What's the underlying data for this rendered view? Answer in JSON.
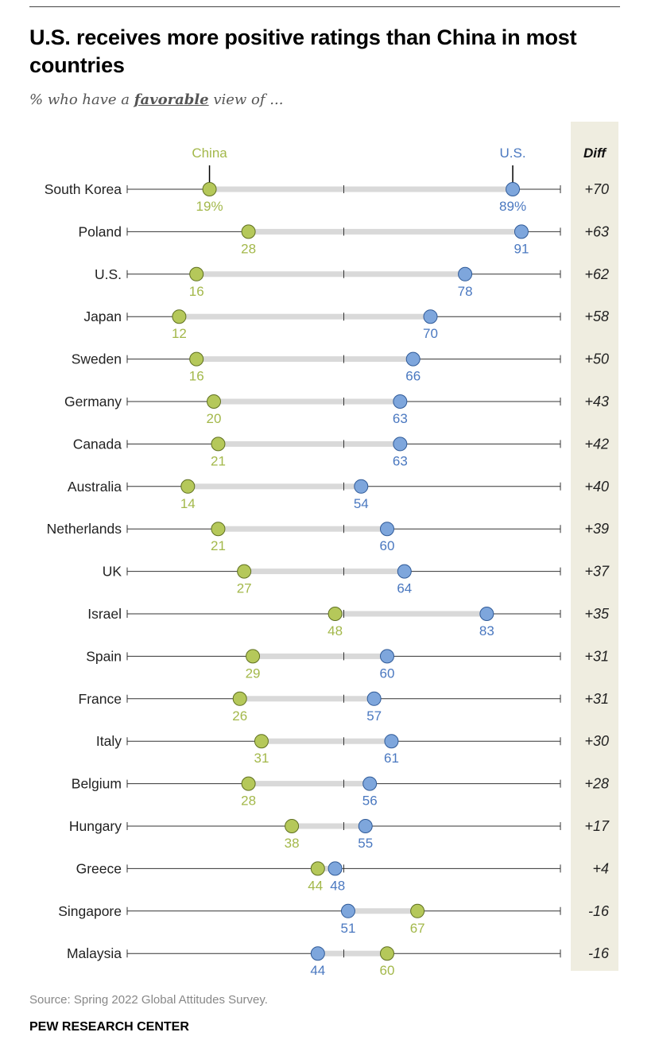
{
  "header": {
    "title": "U.S. receives more positive ratings than China in most countries",
    "subtitle_prefix": "% who have a ",
    "subtitle_emphasis": "favorable",
    "subtitle_suffix": " view of ..."
  },
  "footer": {
    "source": "Source: Spring 2022 Global Attitudes Survey.",
    "brand": "PEW RESEARCH CENTER"
  },
  "colors": {
    "china": "#b5c85a",
    "us": "#7ea6dc",
    "china_text": "#a3b84a",
    "us_text": "#4a78c0",
    "diff_panel": "#efede0",
    "track": "#d9d9d9"
  },
  "chart_data": {
    "type": "dumbbell",
    "x_range": [
      0,
      100
    ],
    "series_labels": {
      "china": "China",
      "us": "U.S.",
      "diff": "Diff"
    },
    "first_row_percent_suffix": "%",
    "rows": [
      {
        "country": "South Korea",
        "china": 19,
        "us": 89,
        "diff": "+70"
      },
      {
        "country": "Poland",
        "china": 28,
        "us": 91,
        "diff": "+63"
      },
      {
        "country": "U.S.",
        "china": 16,
        "us": 78,
        "diff": "+62"
      },
      {
        "country": "Japan",
        "china": 12,
        "us": 70,
        "diff": "+58"
      },
      {
        "country": "Sweden",
        "china": 16,
        "us": 66,
        "diff": "+50"
      },
      {
        "country": "Germany",
        "china": 20,
        "us": 63,
        "diff": "+43"
      },
      {
        "country": "Canada",
        "china": 21,
        "us": 63,
        "diff": "+42"
      },
      {
        "country": "Australia",
        "china": 14,
        "us": 54,
        "diff": "+40"
      },
      {
        "country": "Netherlands",
        "china": 21,
        "us": 60,
        "diff": "+39"
      },
      {
        "country": "UK",
        "china": 27,
        "us": 64,
        "diff": "+37"
      },
      {
        "country": "Israel",
        "china": 48,
        "us": 83,
        "diff": "+35"
      },
      {
        "country": "Spain",
        "china": 29,
        "us": 60,
        "diff": "+31"
      },
      {
        "country": "France",
        "china": 26,
        "us": 57,
        "diff": "+31"
      },
      {
        "country": "Italy",
        "china": 31,
        "us": 61,
        "diff": "+30"
      },
      {
        "country": "Belgium",
        "china": 28,
        "us": 56,
        "diff": "+28"
      },
      {
        "country": "Hungary",
        "china": 38,
        "us": 55,
        "diff": "+17"
      },
      {
        "country": "Greece",
        "china": 44,
        "us": 48,
        "diff": "+4"
      },
      {
        "country": "Singapore",
        "china": 67,
        "us": 51,
        "diff": "-16"
      },
      {
        "country": "Malaysia",
        "china": 60,
        "us": 44,
        "diff": "-16"
      }
    ]
  }
}
